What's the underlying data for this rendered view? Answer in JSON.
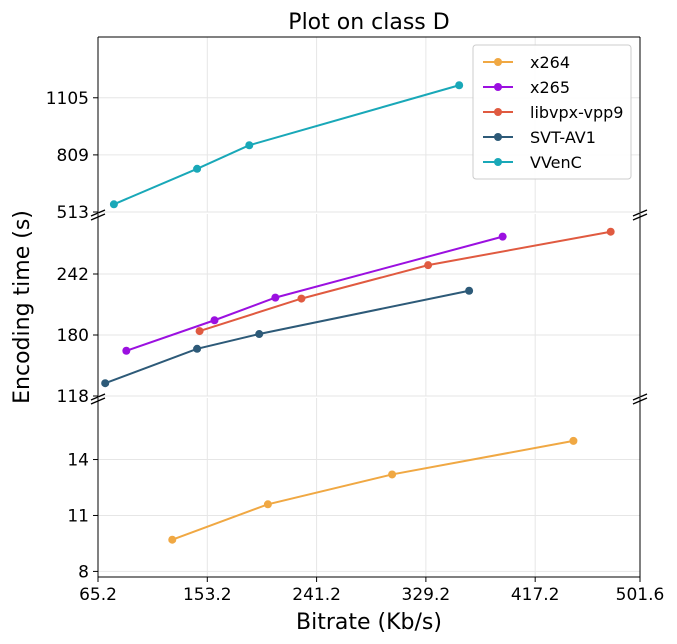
{
  "chart_data": {
    "type": "line",
    "title": "Plot on class D",
    "xlabel": "Bitrate (Kb/s)",
    "ylabel": "Encoding time (s)",
    "xlim": [
      65.2,
      501.6
    ],
    "x_ticks": [
      "65.2",
      "153.2",
      "241.2",
      "329.2",
      "417.2",
      "501.6"
    ],
    "x_tick_values": [
      65.2,
      153.2,
      241.2,
      329.2,
      417.2,
      501.6
    ],
    "grid": true,
    "legend_position": "top-right",
    "broken_y_axis": true,
    "y_segments": [
      {
        "ylim": [
          7.7,
          17.3
        ],
        "ticks": [
          "8",
          "11",
          "14"
        ],
        "tick_values": [
          8,
          11,
          14
        ]
      },
      {
        "ylim": [
          118,
          303
        ],
        "ticks": [
          "118",
          "180",
          "242"
        ],
        "tick_values": [
          118,
          180,
          242
        ]
      },
      {
        "ylim": [
          513,
          1420
        ],
        "ticks": [
          "513",
          "809",
          "1105"
        ],
        "tick_values": [
          513,
          809,
          1105
        ]
      }
    ],
    "series": [
      {
        "name": "x264",
        "color": "#f0a843",
        "segment": 0,
        "x": [
          125,
          202,
          302,
          448
        ],
        "y": [
          9.7,
          11.6,
          13.2,
          15.0
        ]
      },
      {
        "name": "x265",
        "color": "#9b10e0",
        "segment": 1,
        "x": [
          88,
          159,
          208,
          391
        ],
        "y": [
          164,
          195,
          218,
          280
        ]
      },
      {
        "name": "libvpx-vpp9",
        "color": "#e05a40",
        "segment": 1,
        "x": [
          147,
          229,
          331,
          478
        ],
        "y": [
          184,
          217,
          251,
          285
        ]
      },
      {
        "name": "SVT-AV1",
        "color": "#2d5a78",
        "segment": 1,
        "x": [
          71,
          145,
          195,
          364
        ],
        "y": [
          131,
          166,
          181,
          225
        ]
      },
      {
        "name": "VVenC",
        "color": "#19a8b8",
        "segment": 2,
        "x": [
          78,
          145,
          187,
          356
        ],
        "y": [
          553,
          737,
          859,
          1170
        ]
      }
    ]
  }
}
